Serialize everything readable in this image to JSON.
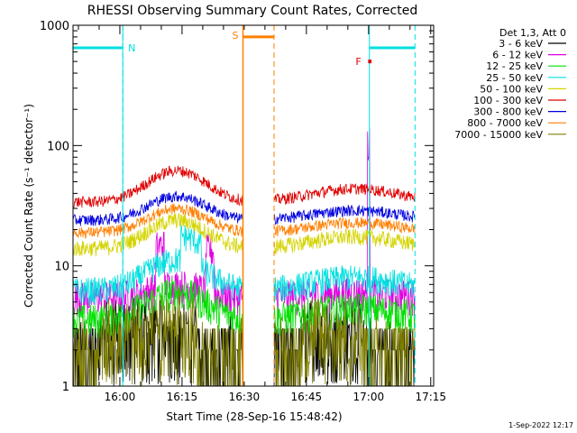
{
  "chart_data": {
    "type": "line",
    "title": "RHESSI Observing Summary Count Rates, Corrected",
    "xlabel": "Start Time (28-Sep-16 15:48:42)",
    "ylabel": "Corrected Count Rate (s⁻¹ detector⁻¹)",
    "yscale": "log",
    "ylim": [
      1,
      1000
    ],
    "xlim_minutes": [
      0,
      87
    ],
    "x_tick_labels": [
      {
        "label": "16:00",
        "t": 11.3
      },
      {
        "label": "16:15",
        "t": 26.3
      },
      {
        "label": "16:30",
        "t": 41.3
      },
      {
        "label": "16:45",
        "t": 56.3
      },
      {
        "label": "17:00",
        "t": 71.3
      },
      {
        "label": "17:15",
        "t": 86.3
      }
    ],
    "y_tick_labels": [
      {
        "label": "1000",
        "v": 1000
      },
      {
        "label": "100",
        "v": 100
      },
      {
        "label": "10",
        "v": 10
      },
      {
        "label": "1",
        "v": 1
      }
    ],
    "legend_title": "Det 1,3, Att 0",
    "legend_position": "top-right",
    "series": [
      {
        "name": "3 - 6 keV",
        "color": "#000000",
        "base": 1.6,
        "peak": 0,
        "noise": 0.6,
        "low": true
      },
      {
        "name": "6 - 12 keV",
        "color": "#e000e0",
        "base": 5.5,
        "peak": 1.5,
        "noise": 0.15,
        "flare": 140
      },
      {
        "name": "12 - 25 keV",
        "color": "#00e000",
        "base": 3.6,
        "peak": 2.5,
        "noise": 0.15
      },
      {
        "name": "25 - 50 keV",
        "color": "#00e0e0",
        "base": 6.3,
        "peak": 5,
        "noise": 0.12
      },
      {
        "name": "50 - 100 keV",
        "color": "#d4d400",
        "base": 14,
        "peak": 10,
        "noise": 0.07
      },
      {
        "name": "100 - 300 keV",
        "color": "#e00000",
        "base": 34,
        "peak": 28,
        "noise": 0.05
      },
      {
        "name": "300 - 800 keV",
        "color": "#0000e0",
        "base": 24,
        "peak": 14,
        "noise": 0.05
      },
      {
        "name": "800 - 7000 keV",
        "color": "#ff7f00",
        "base": 19,
        "peak": 11,
        "noise": 0.05
      },
      {
        "name": "7000 - 15000 keV",
        "color": "#808000",
        "base": 1.5,
        "peak": 0,
        "noise": 0.5,
        "low": true
      }
    ],
    "data_gap_minutes": [
      41.0,
      48.5
    ],
    "night_markers": [
      {
        "label": "N",
        "color": "#00e0e0",
        "start": 0,
        "end": 12,
        "level": 650,
        "line_t": [
          0,
          12
        ],
        "dashed": [
          12
        ]
      },
      {
        "label": "N",
        "color": "#00e0e0",
        "start": 71.5,
        "end": 82.5,
        "level": 650,
        "line_t": [
          71.5
        ],
        "dashed": [
          82.5
        ],
        "no_label": true
      }
    ],
    "saa_marker": {
      "label": "S",
      "color": "#ff7f00",
      "start": 41,
      "end": 48.5,
      "level": 800
    },
    "flare_marker": {
      "label": "F",
      "color": "#e00000",
      "start": 71.2,
      "end": 72.0,
      "level": 500
    }
  },
  "footer": {
    "timestamp": "1-Sep-2022 12:17"
  }
}
